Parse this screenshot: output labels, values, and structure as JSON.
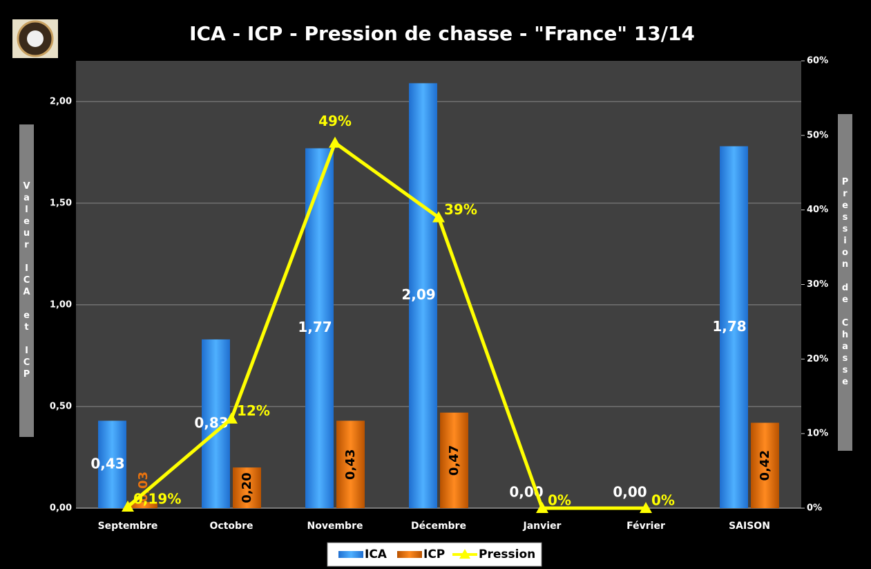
{
  "chart_data": {
    "type": "bar-line",
    "title": "ICA - ICP - Pression de chasse - \"France\" 13/14",
    "ylabel": "Valeur ICA et ICP",
    "y2label": "Pression de Chasse",
    "categories": [
      "Septembre",
      "Octobre",
      "Novembre",
      "Décembre",
      "Janvier",
      "Février",
      "SAISON"
    ],
    "series": [
      {
        "name": "ICA",
        "type": "bar",
        "color": "#3399ff",
        "values": [
          0.43,
          0.83,
          1.77,
          2.09,
          0,
          0,
          1.78
        ],
        "value_labels": [
          "0,43",
          "0,83",
          "1,77",
          "2,09",
          "0,00",
          "0,00",
          "1,78"
        ]
      },
      {
        "name": "ICP",
        "type": "bar",
        "color": "#e8730f",
        "values": [
          0.03,
          0.2,
          0.43,
          0.47,
          null,
          null,
          0.42
        ],
        "value_labels": [
          "0,03",
          "0,20",
          "0,43",
          "0,47",
          null,
          null,
          "0,42"
        ]
      },
      {
        "name": "Pression",
        "type": "line",
        "axis": "y2",
        "color": "#ffff00",
        "values": [
          0.19,
          12,
          49,
          39,
          0,
          0,
          null
        ],
        "value_labels": [
          "0,19%",
          "12%",
          "49%",
          "39%",
          "0%",
          "0%",
          null
        ]
      }
    ],
    "ylim": [
      0,
      2.2
    ],
    "yticks": [
      {
        "value": 0,
        "label": "0,00"
      },
      {
        "value": 0.5,
        "label": "0,50"
      },
      {
        "value": 1,
        "label": "1,00"
      },
      {
        "value": 1.5,
        "label": "1,50"
      },
      {
        "value": 2,
        "label": "2,00"
      }
    ],
    "y2lim": [
      0,
      60
    ],
    "y2ticks": [
      {
        "value": 0,
        "label": "0%"
      },
      {
        "value": 10,
        "label": "10%"
      },
      {
        "value": 20,
        "label": "20%"
      },
      {
        "value": 30,
        "label": "30%"
      },
      {
        "value": 40,
        "label": "40%"
      },
      {
        "value": 50,
        "label": "50%"
      },
      {
        "value": 60,
        "label": "60%"
      }
    ],
    "grid": true,
    "legend": "bottom"
  }
}
